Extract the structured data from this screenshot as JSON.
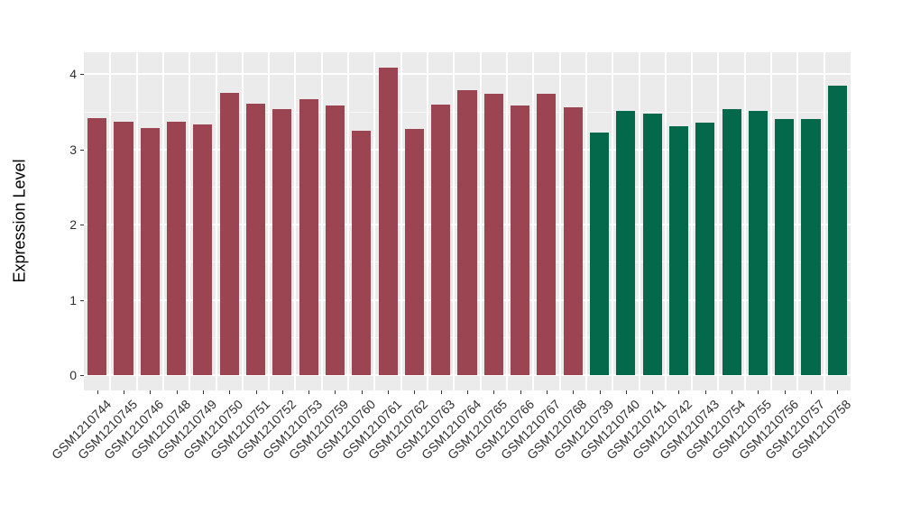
{
  "figure": {
    "background": "#FFFFFF",
    "panel_background": "#EBEBEB",
    "grid_color": "#FFFFFF",
    "tick_color": "#333333",
    "text_color": "#303030"
  },
  "chart_data": {
    "type": "bar",
    "title": "",
    "xlabel": "",
    "ylabel": "Expression Level",
    "ylim": [
      -0.2,
      4.3
    ],
    "yticks": [
      0,
      1,
      2,
      3,
      4
    ],
    "yticks_minor": [
      0.5,
      1.5,
      2.5,
      3.5
    ],
    "grid": true,
    "legend": false,
    "categories": [
      "GSM1210744",
      "GSM1210745",
      "GSM1210746",
      "GSM1210748",
      "GSM1210749",
      "GSM1210750",
      "GSM1210751",
      "GSM1210752",
      "GSM1210753",
      "GSM1210759",
      "GSM1210760",
      "GSM1210761",
      "GSM1210762",
      "GSM1210763",
      "GSM1210764",
      "GSM1210765",
      "GSM1210766",
      "GSM1210767",
      "GSM1210768",
      "GSM1210739",
      "GSM1210740",
      "GSM1210741",
      "GSM1210742",
      "GSM1210743",
      "GSM1210754",
      "GSM1210755",
      "GSM1210756",
      "GSM1210757",
      "GSM1210758"
    ],
    "values": [
      3.42,
      3.37,
      3.29,
      3.37,
      3.33,
      3.75,
      3.61,
      3.54,
      3.67,
      3.59,
      3.25,
      4.09,
      3.27,
      3.6,
      3.79,
      3.74,
      3.58,
      3.74,
      3.56,
      3.23,
      3.51,
      3.48,
      3.31,
      3.36,
      3.54,
      3.51,
      3.41,
      3.4,
      3.85
    ],
    "groups": [
      "group1",
      "group1",
      "group1",
      "group1",
      "group1",
      "group1",
      "group1",
      "group1",
      "group1",
      "group1",
      "group1",
      "group1",
      "group1",
      "group1",
      "group1",
      "group1",
      "group1",
      "group1",
      "group1",
      "group2",
      "group2",
      "group2",
      "group2",
      "group2",
      "group2",
      "group2",
      "group2",
      "group2",
      "group2"
    ],
    "group_colors": {
      "group1": "#9B4452",
      "group2": "#04684A"
    }
  }
}
